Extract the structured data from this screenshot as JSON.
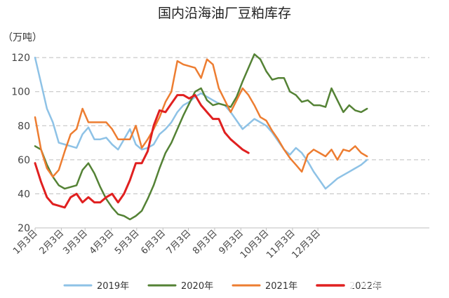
{
  "chart_data": {
    "type": "line",
    "title": "国内沿海油厂豆粕库存",
    "unit_label": "（万吨）",
    "xlabel": "",
    "ylabel": "",
    "ylim": [
      20,
      125
    ],
    "yticks": [
      20,
      40,
      60,
      80,
      100,
      120
    ],
    "grid": true,
    "legend_position": "bottom",
    "x_axis_labels": [
      "1月3日",
      "2月3日",
      "3月3日",
      "4月3日",
      "5月3日",
      "6月3日",
      "7月3日",
      "8月3日",
      "9月3日",
      "10月3日",
      "11月3日",
      "12月3日"
    ],
    "x_axis_label_weeks": [
      0,
      4.43,
      8.43,
      12.86,
      17.14,
      21.57,
      25.86,
      30.29,
      34.71,
      39,
      43.43,
      47.71
    ],
    "week_interval": 1,
    "series": [
      {
        "name": "2019年",
        "color": "#8ec2e6",
        "stroke_width": 2.5,
        "values": [
          120,
          105,
          90,
          82,
          70,
          69,
          68,
          67,
          75,
          79,
          72,
          72,
          73,
          69,
          66,
          72,
          78,
          69,
          66,
          67,
          69,
          75,
          78,
          82,
          88,
          92,
          94,
          97,
          99,
          97,
          95,
          93,
          92,
          88,
          83,
          78,
          81,
          84,
          82,
          80,
          76,
          71,
          66,
          63,
          67,
          64,
          59,
          53,
          48,
          43,
          46,
          49,
          51,
          53,
          55,
          57,
          60
        ]
      },
      {
        "name": "2020年",
        "color": "#548235",
        "stroke_width": 2.5,
        "values": [
          68,
          66,
          57,
          50,
          45,
          43,
          44,
          45,
          54,
          58,
          52,
          44,
          37,
          32,
          28,
          27,
          25,
          27,
          30,
          37,
          45,
          55,
          64,
          70,
          78,
          86,
          93,
          100,
          102,
          95,
          92,
          93,
          92,
          91,
          97,
          106,
          114,
          122,
          119,
          112,
          107,
          108,
          108,
          100,
          98,
          94,
          95,
          92,
          92,
          91,
          102,
          95,
          88,
          92,
          89,
          88,
          90
        ]
      },
      {
        "name": "2021年",
        "color": "#ed7d31",
        "stroke_width": 2.5,
        "values": [
          85,
          66,
          55,
          50,
          54,
          65,
          75,
          78,
          90,
          82,
          82,
          82,
          82,
          78,
          72,
          72,
          72,
          80,
          67,
          72,
          78,
          85,
          94,
          100,
          118,
          116,
          115,
          114,
          108,
          119,
          116,
          102,
          95,
          88,
          95,
          102,
          98,
          92,
          85,
          83,
          77,
          72,
          66,
          61,
          57,
          53,
          63,
          66,
          64,
          62,
          66,
          60,
          66,
          65,
          68,
          64,
          62
        ]
      },
      {
        "name": "2022年",
        "color": "#e02020",
        "stroke_width": 3,
        "values": [
          58,
          47,
          38,
          34,
          33,
          32,
          38,
          40,
          35,
          38,
          35,
          35,
          38,
          40,
          35,
          40,
          48,
          58,
          58,
          65,
          80,
          89,
          88,
          93,
          98,
          98,
          96,
          98,
          92,
          88,
          84,
          84,
          76,
          72,
          69,
          66,
          64
        ]
      }
    ]
  },
  "watermark": {
    "text": "头条 @期货小猪"
  }
}
